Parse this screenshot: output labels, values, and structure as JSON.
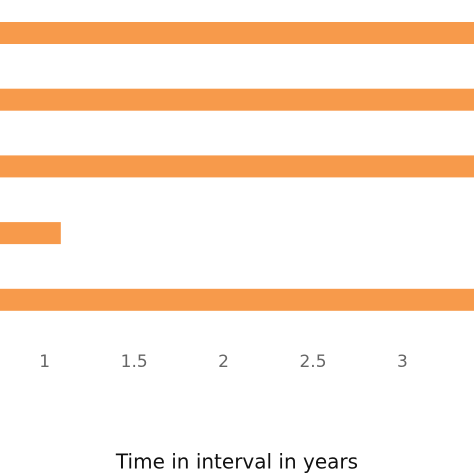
{
  "chart_data": {
    "type": "bar",
    "orientation": "horizontal",
    "x_label": "Time in interval in years",
    "categories": [
      null,
      null,
      null,
      null,
      null
    ],
    "values": [
      3.4,
      3.4,
      3.4,
      1.09,
      3.4
    ],
    "color": "#f79a4b",
    "xlim": [
      0.75,
      3.4
    ],
    "xticks": [
      1,
      1.5,
      2,
      2.5,
      3
    ]
  }
}
